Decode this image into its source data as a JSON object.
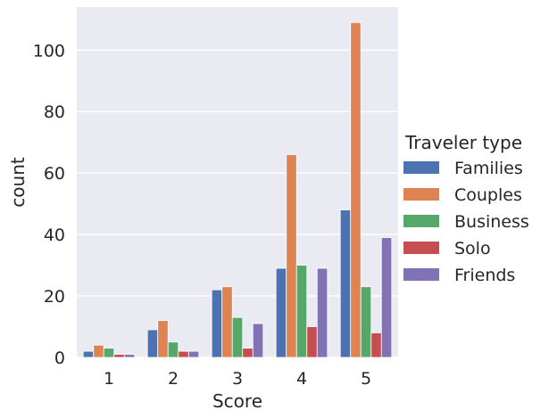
{
  "chart_data": {
    "type": "bar",
    "xlabel": "Score",
    "ylabel": "count",
    "categories": [
      "1",
      "2",
      "3",
      "4",
      "5"
    ],
    "yticks": [
      0,
      20,
      40,
      60,
      80,
      100
    ],
    "ylim": [
      0,
      114
    ],
    "grid": true,
    "legend_title": "Traveler type",
    "legend_position": "right",
    "series": [
      {
        "name": "Families",
        "color": "#4c72b0",
        "values": [
          2,
          9,
          22,
          29,
          48
        ]
      },
      {
        "name": "Couples",
        "color": "#dd8452",
        "values": [
          4,
          12,
          23,
          66,
          109
        ]
      },
      {
        "name": "Business",
        "color": "#55a868",
        "values": [
          3,
          5,
          13,
          30,
          23
        ]
      },
      {
        "name": "Solo",
        "color": "#c44e52",
        "values": [
          1,
          2,
          3,
          10,
          8
        ]
      },
      {
        "name": "Friends",
        "color": "#8172b3",
        "values": [
          1,
          2,
          11,
          29,
          39
        ]
      }
    ]
  }
}
